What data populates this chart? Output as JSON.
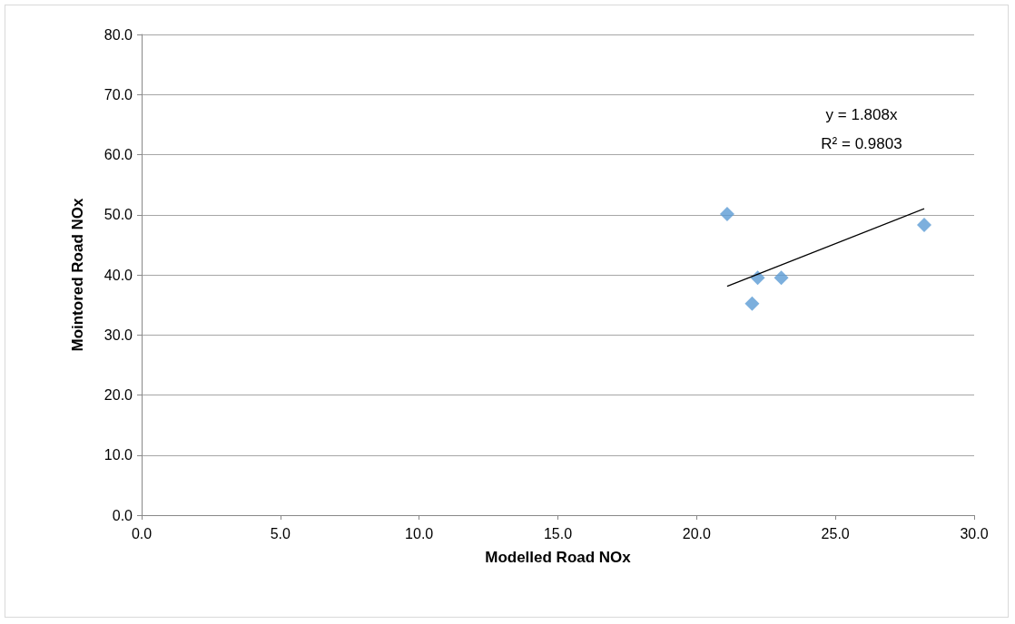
{
  "chart_data": {
    "type": "scatter",
    "xlabel": "Modelled Road NOx",
    "ylabel": "Mointored Road NOx",
    "x": [
      21.1,
      22.2,
      22.0,
      23.05,
      28.2
    ],
    "series": [
      {
        "color": "#5b9bd5",
        "marker": "diamond",
        "values": [
          50.1,
          39.5,
          35.2,
          39.5,
          48.3
        ]
      },
      {
        "type": "line",
        "color": "#000000",
        "marker": "none",
        "x": [
          21.1,
          28.2
        ],
        "values": [
          38.1,
          51.0
        ]
      }
    ],
    "annotations": [
      "y = 1.808x",
      "R² = 0.9803"
    ],
    "xlim": [
      0,
      30
    ],
    "xticks": [
      {
        "value": 0,
        "label": "0.0"
      },
      {
        "value": 5,
        "label": "5.0"
      },
      {
        "value": 10,
        "label": "10.0"
      },
      {
        "value": 15,
        "label": "15.0"
      },
      {
        "value": 20,
        "label": "20.0"
      },
      {
        "value": 25,
        "label": "25.0"
      },
      {
        "value": 30,
        "label": "30.0"
      }
    ],
    "ylim": [
      0,
      80
    ],
    "yticks": [
      {
        "value": 0,
        "label": "0.0"
      },
      {
        "value": 10,
        "label": "10.0"
      },
      {
        "value": 20,
        "label": "20.0"
      },
      {
        "value": 30,
        "label": "30.0"
      },
      {
        "value": 40,
        "label": "40.0"
      },
      {
        "value": 50,
        "label": "50.0"
      },
      {
        "value": 60,
        "label": "60.0"
      },
      {
        "value": 70,
        "label": "70.0"
      },
      {
        "value": 80,
        "label": "80.0"
      }
    ],
    "grid": "y"
  }
}
